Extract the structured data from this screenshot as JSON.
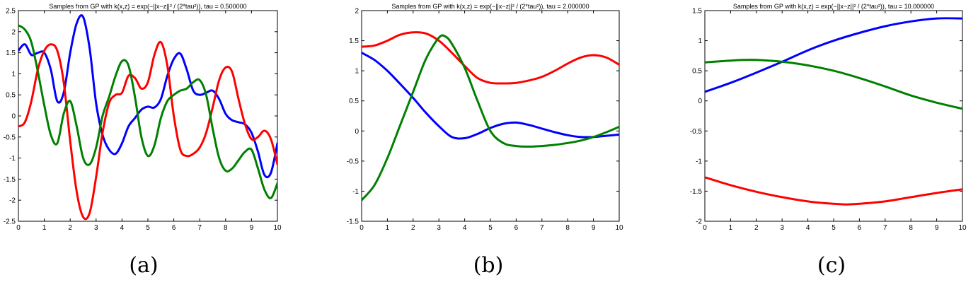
{
  "chart_data": [
    {
      "type": "line",
      "title": "Samples from GP with k(x,z) = exp(−||x−z||² / (2*tau²)), tau = 0.500000",
      "caption": "(a)",
      "xlim": [
        0,
        10
      ],
      "ylim": [
        -2.5,
        2.5
      ],
      "xticks": [
        "0",
        "1",
        "2",
        "3",
        "4",
        "5",
        "6",
        "7",
        "8",
        "9",
        "10"
      ],
      "yticks": [
        "2.5",
        "2",
        "1.5",
        "1",
        "0.5",
        "0",
        "-0.5",
        "-1",
        "-1.5",
        "-2",
        "-2.5"
      ],
      "series": [
        {
          "color": "#0000ff",
          "points": [
            [
              0,
              1.55
            ],
            [
              0.25,
              1.7
            ],
            [
              0.5,
              1.45
            ],
            [
              0.75,
              1.5
            ],
            [
              1.0,
              1.5
            ],
            [
              1.25,
              1.1
            ],
            [
              1.5,
              0.35
            ],
            [
              1.75,
              0.55
            ],
            [
              2.0,
              1.5
            ],
            [
              2.25,
              2.2
            ],
            [
              2.5,
              2.35
            ],
            [
              2.75,
              1.6
            ],
            [
              3.0,
              0.3
            ],
            [
              3.25,
              -0.45
            ],
            [
              3.5,
              -0.8
            ],
            [
              3.75,
              -0.9
            ],
            [
              4.0,
              -0.65
            ],
            [
              4.25,
              -0.25
            ],
            [
              4.5,
              -0.05
            ],
            [
              4.75,
              0.15
            ],
            [
              5.0,
              0.22
            ],
            [
              5.25,
              0.2
            ],
            [
              5.5,
              0.4
            ],
            [
              5.75,
              0.95
            ],
            [
              6.0,
              1.35
            ],
            [
              6.25,
              1.48
            ],
            [
              6.5,
              1.1
            ],
            [
              6.75,
              0.6
            ],
            [
              7.0,
              0.5
            ],
            [
              7.25,
              0.55
            ],
            [
              7.5,
              0.6
            ],
            [
              7.75,
              0.4
            ],
            [
              8.0,
              0.05
            ],
            [
              8.25,
              -0.1
            ],
            [
              8.5,
              -0.15
            ],
            [
              8.75,
              -0.2
            ],
            [
              9.0,
              -0.4
            ],
            [
              9.25,
              -0.85
            ],
            [
              9.5,
              -1.4
            ],
            [
              9.75,
              -1.35
            ],
            [
              10.0,
              -0.65
            ]
          ]
        },
        {
          "color": "#ff0000",
          "points": [
            [
              0,
              -0.25
            ],
            [
              0.25,
              -0.15
            ],
            [
              0.5,
              0.35
            ],
            [
              0.75,
              1.1
            ],
            [
              1.0,
              1.55
            ],
            [
              1.25,
              1.7
            ],
            [
              1.5,
              1.55
            ],
            [
              1.75,
              0.8
            ],
            [
              2.0,
              -0.6
            ],
            [
              2.25,
              -1.8
            ],
            [
              2.5,
              -2.4
            ],
            [
              2.75,
              -2.3
            ],
            [
              3.0,
              -1.45
            ],
            [
              3.25,
              -0.4
            ],
            [
              3.5,
              0.3
            ],
            [
              3.75,
              0.5
            ],
            [
              4.0,
              0.55
            ],
            [
              4.25,
              0.95
            ],
            [
              4.5,
              0.9
            ],
            [
              4.75,
              0.65
            ],
            [
              5.0,
              0.8
            ],
            [
              5.25,
              1.45
            ],
            [
              5.5,
              1.75
            ],
            [
              5.75,
              1.2
            ],
            [
              6.0,
              0.0
            ],
            [
              6.25,
              -0.8
            ],
            [
              6.5,
              -0.95
            ],
            [
              6.75,
              -0.9
            ],
            [
              7.0,
              -0.75
            ],
            [
              7.25,
              -0.4
            ],
            [
              7.5,
              0.2
            ],
            [
              7.75,
              0.85
            ],
            [
              8.0,
              1.15
            ],
            [
              8.25,
              1.05
            ],
            [
              8.5,
              0.4
            ],
            [
              8.75,
              -0.2
            ],
            [
              9.0,
              -0.55
            ],
            [
              9.25,
              -0.5
            ],
            [
              9.5,
              -0.35
            ],
            [
              9.75,
              -0.55
            ],
            [
              10.0,
              -1.15
            ]
          ]
        },
        {
          "color": "#008000",
          "points": [
            [
              0,
              2.15
            ],
            [
              0.25,
              2.05
            ],
            [
              0.5,
              1.75
            ],
            [
              0.75,
              1.05
            ],
            [
              1.0,
              0.25
            ],
            [
              1.25,
              -0.45
            ],
            [
              1.5,
              -0.65
            ],
            [
              1.75,
              0.05
            ],
            [
              2.0,
              0.35
            ],
            [
              2.25,
              -0.25
            ],
            [
              2.5,
              -1.0
            ],
            [
              2.75,
              -1.15
            ],
            [
              3.0,
              -0.75
            ],
            [
              3.25,
              0.0
            ],
            [
              3.5,
              0.45
            ],
            [
              3.75,
              0.95
            ],
            [
              4.0,
              1.3
            ],
            [
              4.25,
              1.2
            ],
            [
              4.5,
              0.45
            ],
            [
              4.75,
              -0.5
            ],
            [
              5.0,
              -0.95
            ],
            [
              5.25,
              -0.7
            ],
            [
              5.5,
              -0.05
            ],
            [
              5.75,
              0.35
            ],
            [
              6.0,
              0.5
            ],
            [
              6.25,
              0.6
            ],
            [
              6.5,
              0.65
            ],
            [
              6.75,
              0.8
            ],
            [
              7.0,
              0.85
            ],
            [
              7.25,
              0.5
            ],
            [
              7.5,
              -0.3
            ],
            [
              7.75,
              -1.0
            ],
            [
              8.0,
              -1.3
            ],
            [
              8.25,
              -1.25
            ],
            [
              8.5,
              -1.05
            ],
            [
              8.75,
              -0.85
            ],
            [
              9.0,
              -0.8
            ],
            [
              9.25,
              -1.25
            ],
            [
              9.5,
              -1.75
            ],
            [
              9.75,
              -1.95
            ],
            [
              10.0,
              -1.6
            ]
          ]
        }
      ]
    },
    {
      "type": "line",
      "title": "Samples from GP with k(x,z) = exp(−||x−z||² / (2*tau²)), tau = 2.000000",
      "caption": "(b)",
      "xlim": [
        0,
        10
      ],
      "ylim": [
        -1.5,
        2
      ],
      "xticks": [
        "0",
        "1",
        "2",
        "3",
        "4",
        "5",
        "6",
        "7",
        "8",
        "9",
        "10"
      ],
      "yticks": [
        "2",
        "1.5",
        "1",
        "0.5",
        "0",
        "-0.5",
        "-1",
        "-1.5"
      ],
      "series": [
        {
          "color": "#ff0000",
          "points": [
            [
              0,
              1.4
            ],
            [
              0.5,
              1.42
            ],
            [
              1,
              1.5
            ],
            [
              1.5,
              1.6
            ],
            [
              2,
              1.64
            ],
            [
              2.5,
              1.62
            ],
            [
              3,
              1.5
            ],
            [
              3.5,
              1.3
            ],
            [
              4,
              1.08
            ],
            [
              4.5,
              0.88
            ],
            [
              5,
              0.8
            ],
            [
              5.5,
              0.79
            ],
            [
              6,
              0.8
            ],
            [
              6.5,
              0.84
            ],
            [
              7,
              0.9
            ],
            [
              7.5,
              1.0
            ],
            [
              8,
              1.12
            ],
            [
              8.5,
              1.22
            ],
            [
              9,
              1.26
            ],
            [
              9.5,
              1.22
            ],
            [
              10,
              1.1
            ]
          ]
        },
        {
          "color": "#0000ff",
          "points": [
            [
              0,
              1.3
            ],
            [
              0.5,
              1.18
            ],
            [
              1,
              1.0
            ],
            [
              1.5,
              0.78
            ],
            [
              2,
              0.55
            ],
            [
              2.5,
              0.3
            ],
            [
              3,
              0.08
            ],
            [
              3.5,
              -0.1
            ],
            [
              4,
              -0.12
            ],
            [
              4.5,
              -0.05
            ],
            [
              5,
              0.05
            ],
            [
              5.5,
              0.12
            ],
            [
              6,
              0.14
            ],
            [
              6.5,
              0.1
            ],
            [
              7,
              0.04
            ],
            [
              7.5,
              -0.02
            ],
            [
              8,
              -0.07
            ],
            [
              8.5,
              -0.1
            ],
            [
              9,
              -0.1
            ],
            [
              9.5,
              -0.08
            ],
            [
              10,
              -0.06
            ]
          ]
        },
        {
          "color": "#008000",
          "points": [
            [
              0,
              -1.15
            ],
            [
              0.5,
              -0.9
            ],
            [
              1,
              -0.45
            ],
            [
              1.5,
              0.1
            ],
            [
              2,
              0.65
            ],
            [
              2.5,
              1.2
            ],
            [
              3,
              1.55
            ],
            [
              3.25,
              1.57
            ],
            [
              3.5,
              1.45
            ],
            [
              4,
              1.05
            ],
            [
              4.5,
              0.5
            ],
            [
              5,
              0.0
            ],
            [
              5.5,
              -0.2
            ],
            [
              6,
              -0.25
            ],
            [
              6.5,
              -0.26
            ],
            [
              7,
              -0.25
            ],
            [
              7.5,
              -0.23
            ],
            [
              8,
              -0.2
            ],
            [
              8.5,
              -0.16
            ],
            [
              9,
              -0.1
            ],
            [
              9.5,
              -0.02
            ],
            [
              10,
              0.07
            ]
          ]
        }
      ]
    },
    {
      "type": "line",
      "title": "Samples from GP with k(x,z) = exp(−||x−z||² / (2*tau²)), tau = 10.000000",
      "caption": "(c)",
      "xlim": [
        0,
        10
      ],
      "ylim": [
        -2,
        1.5
      ],
      "xticks": [
        "0",
        "1",
        "2",
        "3",
        "4",
        "5",
        "6",
        "7",
        "8",
        "9",
        "10"
      ],
      "yticks": [
        "1.5",
        "1",
        "0.5",
        "0",
        "-0.5",
        "-1",
        "-1.5",
        "-2"
      ],
      "series": [
        {
          "color": "#0000ff",
          "points": [
            [
              0,
              0.15
            ],
            [
              1,
              0.3
            ],
            [
              2,
              0.47
            ],
            [
              3,
              0.65
            ],
            [
              4,
              0.84
            ],
            [
              5,
              1.0
            ],
            [
              6,
              1.13
            ],
            [
              7,
              1.24
            ],
            [
              8,
              1.32
            ],
            [
              9,
              1.37
            ],
            [
              10,
              1.37
            ]
          ]
        },
        {
          "color": "#008000",
          "points": [
            [
              0,
              0.64
            ],
            [
              1,
              0.67
            ],
            [
              1.5,
              0.68
            ],
            [
              2,
              0.68
            ],
            [
              3,
              0.65
            ],
            [
              4,
              0.59
            ],
            [
              5,
              0.5
            ],
            [
              6,
              0.38
            ],
            [
              7,
              0.24
            ],
            [
              8,
              0.09
            ],
            [
              9,
              -0.03
            ],
            [
              10,
              -0.13
            ]
          ]
        },
        {
          "color": "#ff0000",
          "points": [
            [
              0,
              -1.27
            ],
            [
              1,
              -1.4
            ],
            [
              2,
              -1.51
            ],
            [
              3,
              -1.6
            ],
            [
              4,
              -1.67
            ],
            [
              5,
              -1.71
            ],
            [
              5.5,
              -1.72
            ],
            [
              6,
              -1.71
            ],
            [
              7,
              -1.67
            ],
            [
              8,
              -1.6
            ],
            [
              9,
              -1.53
            ],
            [
              10,
              -1.47
            ]
          ]
        }
      ]
    }
  ]
}
